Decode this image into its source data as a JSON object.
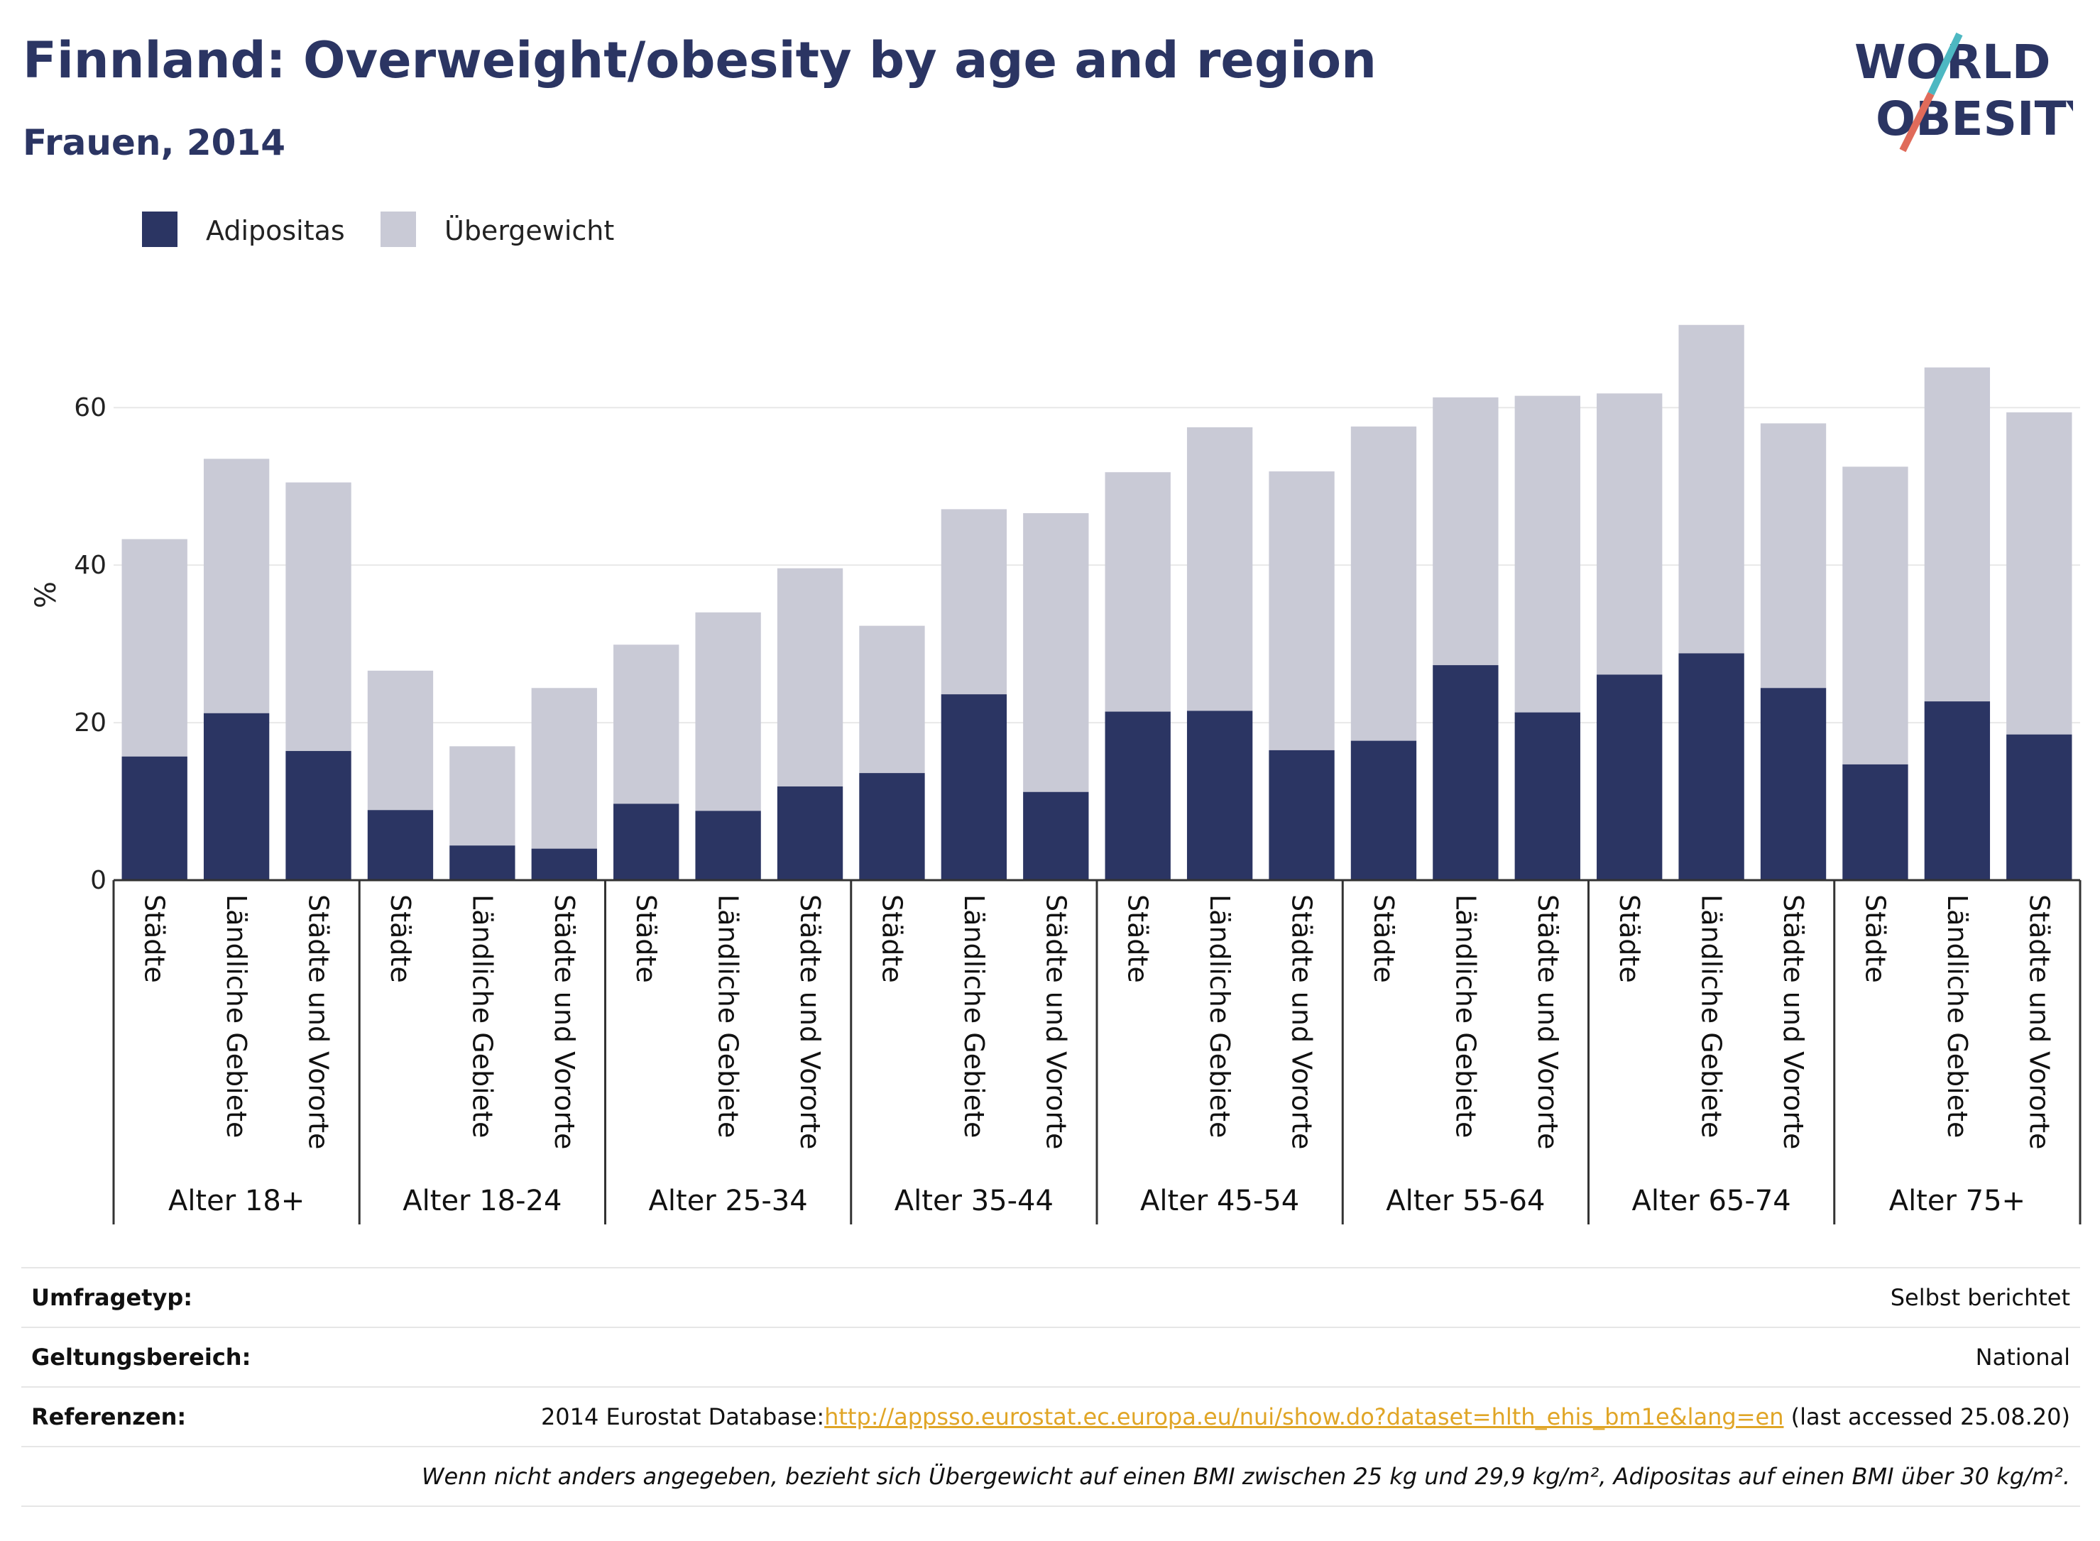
{
  "header": {
    "title": "Finnland: Overweight/obesity by age and region",
    "subtitle": "Frauen, 2014"
  },
  "logo": {
    "line1": "WORLD",
    "line2": "OBESITY",
    "accent1": "#4db8c2",
    "accent2": "#e06b5a"
  },
  "colors": {
    "adipositas": "#2b3563",
    "uebergewicht": "#c9cad6",
    "axis": "#333333",
    "grid": "#e8e8e8"
  },
  "chart_data": {
    "type": "bar",
    "stacked": true,
    "ylabel": "%",
    "ylim": [
      0,
      73
    ],
    "yticks": [
      0,
      20,
      40,
      60
    ],
    "grid": true,
    "legend": {
      "placement": "top-left",
      "items": [
        "Adipositas",
        "Übergewicht"
      ]
    },
    "groups": [
      {
        "name": "Alter 18+",
        "categories": [
          "Städte",
          "Ländliche Gebiete",
          "Städte und Vororte"
        ],
        "adipositas": [
          15.7,
          21.2,
          16.4
        ],
        "total": [
          43.3,
          53.5,
          50.5
        ]
      },
      {
        "name": "Alter 18-24",
        "categories": [
          "Städte",
          "Ländliche Gebiete",
          "Städte und Vororte"
        ],
        "adipositas": [
          8.9,
          4.4,
          4.0
        ],
        "total": [
          26.6,
          17.0,
          24.4
        ]
      },
      {
        "name": "Alter 25-34",
        "categories": [
          "Städte",
          "Ländliche Gebiete",
          "Städte und Vororte"
        ],
        "adipositas": [
          9.7,
          8.8,
          11.9
        ],
        "total": [
          29.9,
          34.0,
          39.6
        ]
      },
      {
        "name": "Alter 35-44",
        "categories": [
          "Städte",
          "Ländliche Gebiete",
          "Städte und Vororte"
        ],
        "adipositas": [
          13.6,
          23.6,
          11.2
        ],
        "total": [
          32.3,
          47.1,
          46.6
        ]
      },
      {
        "name": "Alter 45-54",
        "categories": [
          "Städte",
          "Ländliche Gebiete",
          "Städte und Vororte"
        ],
        "adipositas": [
          21.4,
          21.5,
          16.5
        ],
        "total": [
          51.8,
          57.5,
          51.9
        ]
      },
      {
        "name": "Alter 55-64",
        "categories": [
          "Städte",
          "Ländliche Gebiete",
          "Städte und Vororte"
        ],
        "adipositas": [
          17.7,
          27.3,
          21.3
        ],
        "total": [
          57.6,
          61.3,
          61.5
        ]
      },
      {
        "name": "Alter 65-74",
        "categories": [
          "Städte",
          "Ländliche Gebiete",
          "Städte und Vororte"
        ],
        "adipositas": [
          26.1,
          28.8,
          24.4
        ],
        "total": [
          61.8,
          70.5,
          58.0
        ]
      },
      {
        "name": "Alter 75+",
        "categories": [
          "Städte",
          "Ländliche Gebiete",
          "Städte und Vororte"
        ],
        "adipositas": [
          14.7,
          22.7,
          18.5
        ],
        "total": [
          52.5,
          65.1,
          59.4
        ]
      }
    ]
  },
  "info": {
    "survey_label": "Umfragetyp:",
    "survey_value": "Selbst berichtet",
    "scope_label": "Geltungsbereich:",
    "scope_value": "National",
    "ref_label": "Referenzen:",
    "ref_prefix": "2014 Eurostat Database:",
    "ref_link": "http://appsso.eurostat.ec.europa.eu/nui/show.do?dataset=hlth_ehis_bm1e&lang=en",
    "ref_suffix": " (last accessed 25.08.20)",
    "note": "Wenn nicht anders angegeben, bezieht sich Übergewicht auf einen BMI zwischen 25 kg und 29,9 kg/m², Adipositas auf einen BMI über 30 kg/m²."
  }
}
